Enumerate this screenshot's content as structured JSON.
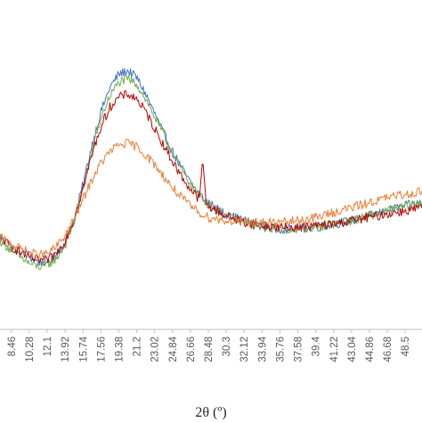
{
  "chart_data": {
    "type": "line",
    "title": "",
    "xlabel": "2θ (º)",
    "ylabel": "",
    "grid": false,
    "legend": "none",
    "x_tick_labels": [
      "8.46",
      "10.28",
      "12.1",
      "13.92",
      "15.74",
      "17.56",
      "19.38",
      "21.2",
      "23.02",
      "24.84",
      "26.66",
      "28.48",
      "30.3",
      "32.12",
      "33.94",
      "35.76",
      "37.58",
      "39.4",
      "41.22",
      "43.04",
      "44.86",
      "46.68",
      "48.5"
    ],
    "xlim": [
      7.3,
      50.2
    ],
    "ylim": [
      0,
      1
    ],
    "series": [
      {
        "color": "#4472c4",
        "x": [
          7.3,
          8.46,
          9.37,
          10.28,
          11.19,
          12.1,
          13.01,
          13.92,
          14.83,
          15.74,
          16.65,
          17.56,
          18.47,
          19.38,
          20.29,
          21.2,
          22.11,
          23.02,
          23.93,
          24.84,
          25.75,
          26.66,
          27.57,
          28.48,
          29.39,
          30.3,
          31.21,
          32.12,
          33.94,
          35.76,
          37.58,
          39.4,
          41.22,
          43.04,
          44.86,
          46.68,
          48.5,
          50.2
        ],
        "y": [
          0.28,
          0.25,
          0.235,
          0.22,
          0.205,
          0.205,
          0.225,
          0.265,
          0.335,
          0.44,
          0.56,
          0.66,
          0.735,
          0.775,
          0.785,
          0.765,
          0.715,
          0.655,
          0.595,
          0.54,
          0.49,
          0.445,
          0.41,
          0.385,
          0.365,
          0.35,
          0.34,
          0.33,
          0.315,
          0.305,
          0.305,
          0.31,
          0.32,
          0.33,
          0.345,
          0.36,
          0.375,
          0.385
        ]
      },
      {
        "color": "#70ad47",
        "x": [
          7.3,
          8.46,
          9.37,
          10.28,
          11.19,
          12.1,
          13.01,
          13.92,
          14.83,
          15.74,
          16.65,
          17.56,
          18.47,
          19.38,
          20.29,
          21.2,
          22.11,
          23.02,
          23.93,
          24.84,
          25.75,
          26.66,
          27.57,
          28.48,
          29.39,
          30.3,
          31.21,
          32.12,
          33.94,
          35.76,
          37.58,
          39.4,
          41.22,
          43.04,
          44.86,
          46.68,
          48.5,
          50.2
        ],
        "y": [
          0.27,
          0.24,
          0.22,
          0.2,
          0.19,
          0.195,
          0.215,
          0.255,
          0.325,
          0.425,
          0.54,
          0.64,
          0.71,
          0.75,
          0.76,
          0.745,
          0.7,
          0.645,
          0.59,
          0.535,
          0.485,
          0.44,
          0.405,
          0.38,
          0.36,
          0.345,
          0.335,
          0.325,
          0.31,
          0.305,
          0.305,
          0.31,
          0.32,
          0.33,
          0.345,
          0.36,
          0.375,
          0.385
        ]
      },
      {
        "color": "#c00000",
        "x": [
          7.3,
          8.46,
          9.37,
          10.28,
          11.19,
          12.1,
          13.01,
          13.92,
          14.83,
          15.74,
          16.65,
          17.56,
          18.47,
          19.38,
          20.29,
          21.2,
          22.11,
          23.02,
          23.93,
          24.84,
          25.75,
          26.66,
          27.57,
          28.48,
          29.39,
          30.3,
          31.21,
          32.12,
          33.94,
          35.76,
          37.58,
          39.4,
          41.22,
          43.04,
          44.86,
          46.68,
          48.5,
          50.2
        ],
        "y": [
          0.28,
          0.25,
          0.235,
          0.22,
          0.21,
          0.21,
          0.23,
          0.27,
          0.335,
          0.43,
          0.53,
          0.615,
          0.675,
          0.705,
          0.715,
          0.7,
          0.66,
          0.61,
          0.56,
          0.51,
          0.465,
          0.425,
          0.395,
          0.375,
          0.36,
          0.345,
          0.335,
          0.325,
          0.315,
          0.31,
          0.31,
          0.315,
          0.32,
          0.33,
          0.34,
          0.35,
          0.36,
          0.37
        ]
      },
      {
        "color": "#ed7d31",
        "x": [
          7.3,
          8.46,
          9.37,
          10.28,
          11.19,
          12.1,
          13.01,
          13.92,
          14.83,
          15.74,
          16.65,
          17.56,
          18.47,
          19.38,
          20.29,
          21.2,
          22.11,
          23.02,
          23.93,
          24.84,
          25.75,
          26.66,
          27.57,
          28.48,
          29.39,
          30.3,
          31.21,
          32.12,
          33.94,
          35.76,
          37.58,
          39.4,
          41.22,
          43.04,
          44.86,
          46.68,
          48.5,
          50.2
        ],
        "y": [
          0.28,
          0.26,
          0.245,
          0.235,
          0.225,
          0.23,
          0.25,
          0.285,
          0.335,
          0.395,
          0.455,
          0.505,
          0.54,
          0.56,
          0.565,
          0.555,
          0.53,
          0.5,
          0.465,
          0.43,
          0.4,
          0.375,
          0.355,
          0.34,
          0.335,
          0.33,
          0.33,
          0.325,
          0.325,
          0.325,
          0.33,
          0.34,
          0.355,
          0.37,
          0.385,
          0.4,
          0.41,
          0.42
        ]
      }
    ],
    "annotations": [
      {
        "series_color": "#c00000",
        "x": 27.9,
        "y": 0.52,
        "note": "sharp peak"
      }
    ]
  }
}
